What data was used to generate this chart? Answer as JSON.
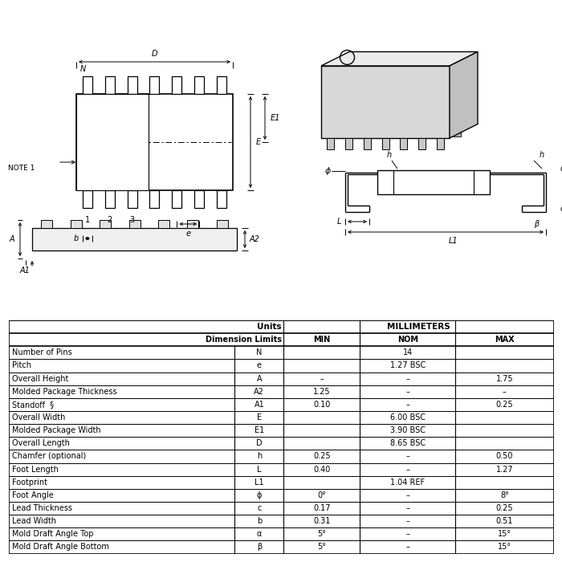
{
  "bg_color": "#ffffff",
  "table_rows": [
    [
      "Number of Pins",
      "N",
      "",
      "14",
      ""
    ],
    [
      "Pitch",
      "e",
      "",
      "1.27 BSC",
      ""
    ],
    [
      "Overall Height",
      "A",
      "–",
      "–",
      "1.75"
    ],
    [
      "Molded Package Thickness",
      "A2",
      "1.25",
      "–",
      "–"
    ],
    [
      "Standoff  §",
      "A1",
      "0.10",
      "–",
      "0.25"
    ],
    [
      "Overall Width",
      "E",
      "",
      "6.00 BSC",
      ""
    ],
    [
      "Molded Package Width",
      "E1",
      "",
      "3.90 BSC",
      ""
    ],
    [
      "Overall Length",
      "D",
      "",
      "8.65 BSC",
      ""
    ],
    [
      "Chamfer (optional)",
      "h",
      "0.25",
      "–",
      "0.50"
    ],
    [
      "Foot Length",
      "L",
      "0.40",
      "–",
      "1.27"
    ],
    [
      "Footprint",
      "L1",
      "",
      "1.04 REF",
      ""
    ],
    [
      "Foot Angle",
      "ϕ",
      "0°",
      "–",
      "8°"
    ],
    [
      "Lead Thickness",
      "c",
      "0.17",
      "–",
      "0.25"
    ],
    [
      "Lead Width",
      "b",
      "0.31",
      "–",
      "0.51"
    ],
    [
      "Mold Draft Angle Top",
      "α",
      "5°",
      "–",
      "15°"
    ],
    [
      "Mold Draft Angle Bottom",
      "β",
      "5°",
      "–",
      "15°"
    ]
  ],
  "font_size_table": 7.0,
  "font_size_header": 7.5,
  "line_color": "#000000",
  "hatch_color": "#000000"
}
